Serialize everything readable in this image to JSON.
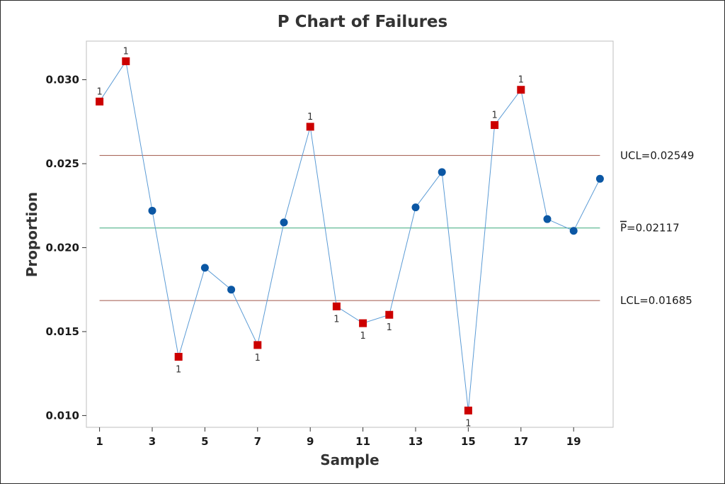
{
  "chart_data": {
    "type": "line",
    "title": "P Chart of Failures",
    "xlabel": "Sample",
    "ylabel": "Proportion",
    "xlim": [
      0.5,
      20.5
    ],
    "ylim": [
      0.0093,
      0.0323
    ],
    "x_ticks": [
      1,
      3,
      5,
      7,
      9,
      11,
      13,
      15,
      17,
      19
    ],
    "x_tick_labels": [
      "1",
      "3",
      "5",
      "7",
      "9",
      "11",
      "13",
      "15",
      "17",
      "19"
    ],
    "y_ticks": [
      0.01,
      0.015,
      0.02,
      0.025,
      0.03
    ],
    "y_tick_labels": [
      "0.010",
      "0.015",
      "0.020",
      "0.025",
      "0.030"
    ],
    "grid": false,
    "series": [
      {
        "x": [
          1,
          2,
          3,
          4,
          5,
          6,
          7,
          8,
          9,
          10,
          11,
          12,
          13,
          14,
          15,
          16,
          17,
          18,
          19,
          20
        ],
        "values": [
          0.0287,
          0.0311,
          0.0222,
          0.0135,
          0.0188,
          0.0175,
          0.0142,
          0.0215,
          0.0272,
          0.0165,
          0.0155,
          0.016,
          0.0224,
          0.0245,
          0.0103,
          0.0273,
          0.0294,
          0.0217,
          0.021,
          0.0241
        ],
        "out_of_control": [
          true,
          true,
          false,
          true,
          false,
          false,
          true,
          false,
          true,
          true,
          true,
          true,
          false,
          false,
          true,
          true,
          true,
          false,
          false,
          false
        ],
        "flag_text": "1"
      }
    ],
    "reference_lines": [
      {
        "label": "UCL=0.02549",
        "value": 0.02549,
        "color": "#a0574a"
      },
      {
        "label": "=0.02117",
        "value": 0.02117,
        "color": "#3aa87a",
        "symbol": "P"
      },
      {
        "label": "LCL=0.01685",
        "value": 0.01685,
        "color": "#a0574a"
      }
    ],
    "colors": {
      "line": "#5b9bd5",
      "in_control": "#0b57a4",
      "out_of_control": "#cc0000",
      "plot_border": "#bfbfbf"
    }
  }
}
